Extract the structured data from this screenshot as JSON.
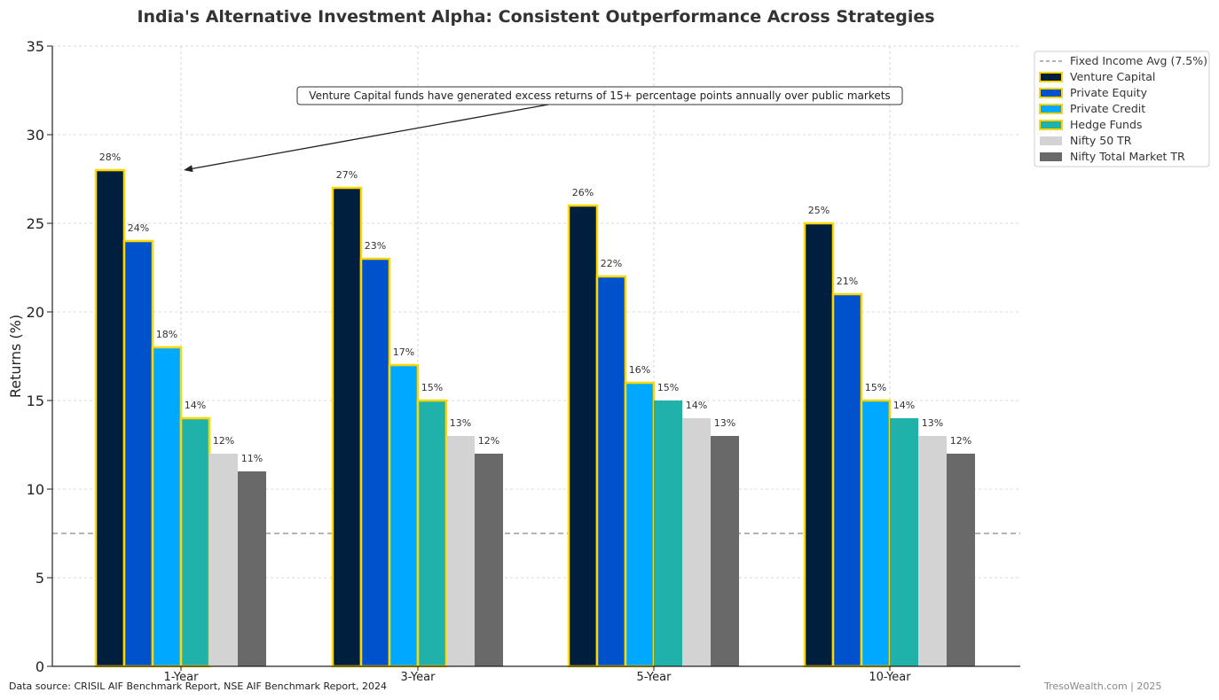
{
  "chart_data": {
    "type": "bar",
    "title": "India's Alternative Investment Alpha: Consistent Outperformance Across Strategies",
    "xlabel": "",
    "ylabel": "Returns (%)",
    "ylim": [
      0,
      35
    ],
    "yticks": [
      0,
      5,
      10,
      15,
      20,
      25,
      30,
      35
    ],
    "grid": true,
    "categories": [
      "1-Year",
      "3-Year",
      "5-Year",
      "10-Year"
    ],
    "series": [
      {
        "name": "Venture Capital",
        "color": "#001f3f",
        "highlight": true,
        "values": [
          28,
          27,
          26,
          25
        ]
      },
      {
        "name": "Private Equity",
        "color": "#0052cc",
        "highlight": true,
        "values": [
          24,
          23,
          22,
          21
        ]
      },
      {
        "name": "Private Credit",
        "color": "#00a8ff",
        "highlight": true,
        "values": [
          18,
          17,
          16,
          15
        ]
      },
      {
        "name": "Hedge Funds",
        "color": "#20b2aa",
        "highlight": true,
        "values": [
          14,
          15,
          15,
          14
        ]
      },
      {
        "name": "Nifty 50 TR",
        "color": "#d3d3d3",
        "highlight": false,
        "values": [
          12,
          13,
          14,
          13
        ]
      },
      {
        "name": "Nifty Total Market TR",
        "color": "#696969",
        "highlight": false,
        "values": [
          11,
          12,
          13,
          12
        ]
      }
    ],
    "highlight_border_color": "#ffd700",
    "highlights_by_category": [
      [
        true,
        true,
        true,
        true,
        false,
        false
      ],
      [
        true,
        true,
        true,
        true,
        false,
        false
      ],
      [
        true,
        true,
        true,
        false,
        false,
        false
      ],
      [
        true,
        true,
        true,
        false,
        false,
        false
      ]
    ],
    "value_label_suffix": "%",
    "reference_line": {
      "label": "Fixed Income Avg (7.5%)",
      "value": 7.5,
      "color": "#888888"
    },
    "annotation": {
      "text": "Venture Capital funds have generated excess returns of 15+ percentage points annually over public markets",
      "points_to_category": "1-Year",
      "points_to_value": 28
    },
    "legend_position": "top-right"
  },
  "footer": {
    "source": "Data source: CRISIL AIF Benchmark Report, NSE AIF Benchmark Report, 2024",
    "credit": "TresoWealth.com | 2025"
  }
}
